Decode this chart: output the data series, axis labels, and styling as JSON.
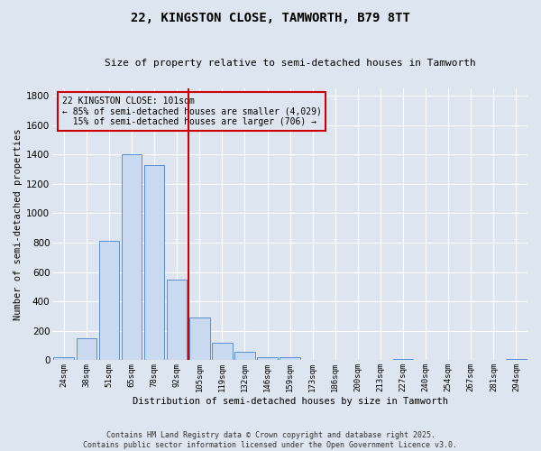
{
  "title_line1": "22, KINGSTON CLOSE, TAMWORTH, B79 8TT",
  "title_line2": "Size of property relative to semi-detached houses in Tamworth",
  "xlabel": "Distribution of semi-detached houses by size in Tamworth",
  "ylabel": "Number of semi-detached properties",
  "categories": [
    "24sqm",
    "38sqm",
    "51sqm",
    "65sqm",
    "78sqm",
    "92sqm",
    "105sqm",
    "119sqm",
    "132sqm",
    "146sqm",
    "159sqm",
    "173sqm",
    "186sqm",
    "200sqm",
    "213sqm",
    "227sqm",
    "240sqm",
    "254sqm",
    "267sqm",
    "281sqm",
    "294sqm"
  ],
  "values": [
    20,
    150,
    810,
    1400,
    1330,
    550,
    290,
    120,
    55,
    20,
    20,
    0,
    0,
    0,
    0,
    10,
    0,
    0,
    0,
    0,
    10
  ],
  "bar_color": "#c9d9f0",
  "bar_edge_color": "#5b8fd4",
  "vline_idx": 6,
  "vline_color": "#cc0000",
  "annotation_title": "22 KINGSTON CLOSE: 101sqm",
  "annotation_line1": "← 85% of semi-detached houses are smaller (4,029)",
  "annotation_line2": "  15% of semi-detached houses are larger (706) →",
  "annotation_box_color": "#cc0000",
  "ylim": [
    0,
    1850
  ],
  "yticks": [
    0,
    200,
    400,
    600,
    800,
    1000,
    1200,
    1400,
    1600,
    1800
  ],
  "background_color": "#dde5f0",
  "grid_color": "#ffffff",
  "footer_line1": "Contains HM Land Registry data © Crown copyright and database right 2025.",
  "footer_line2": "Contains public sector information licensed under the Open Government Licence v3.0."
}
